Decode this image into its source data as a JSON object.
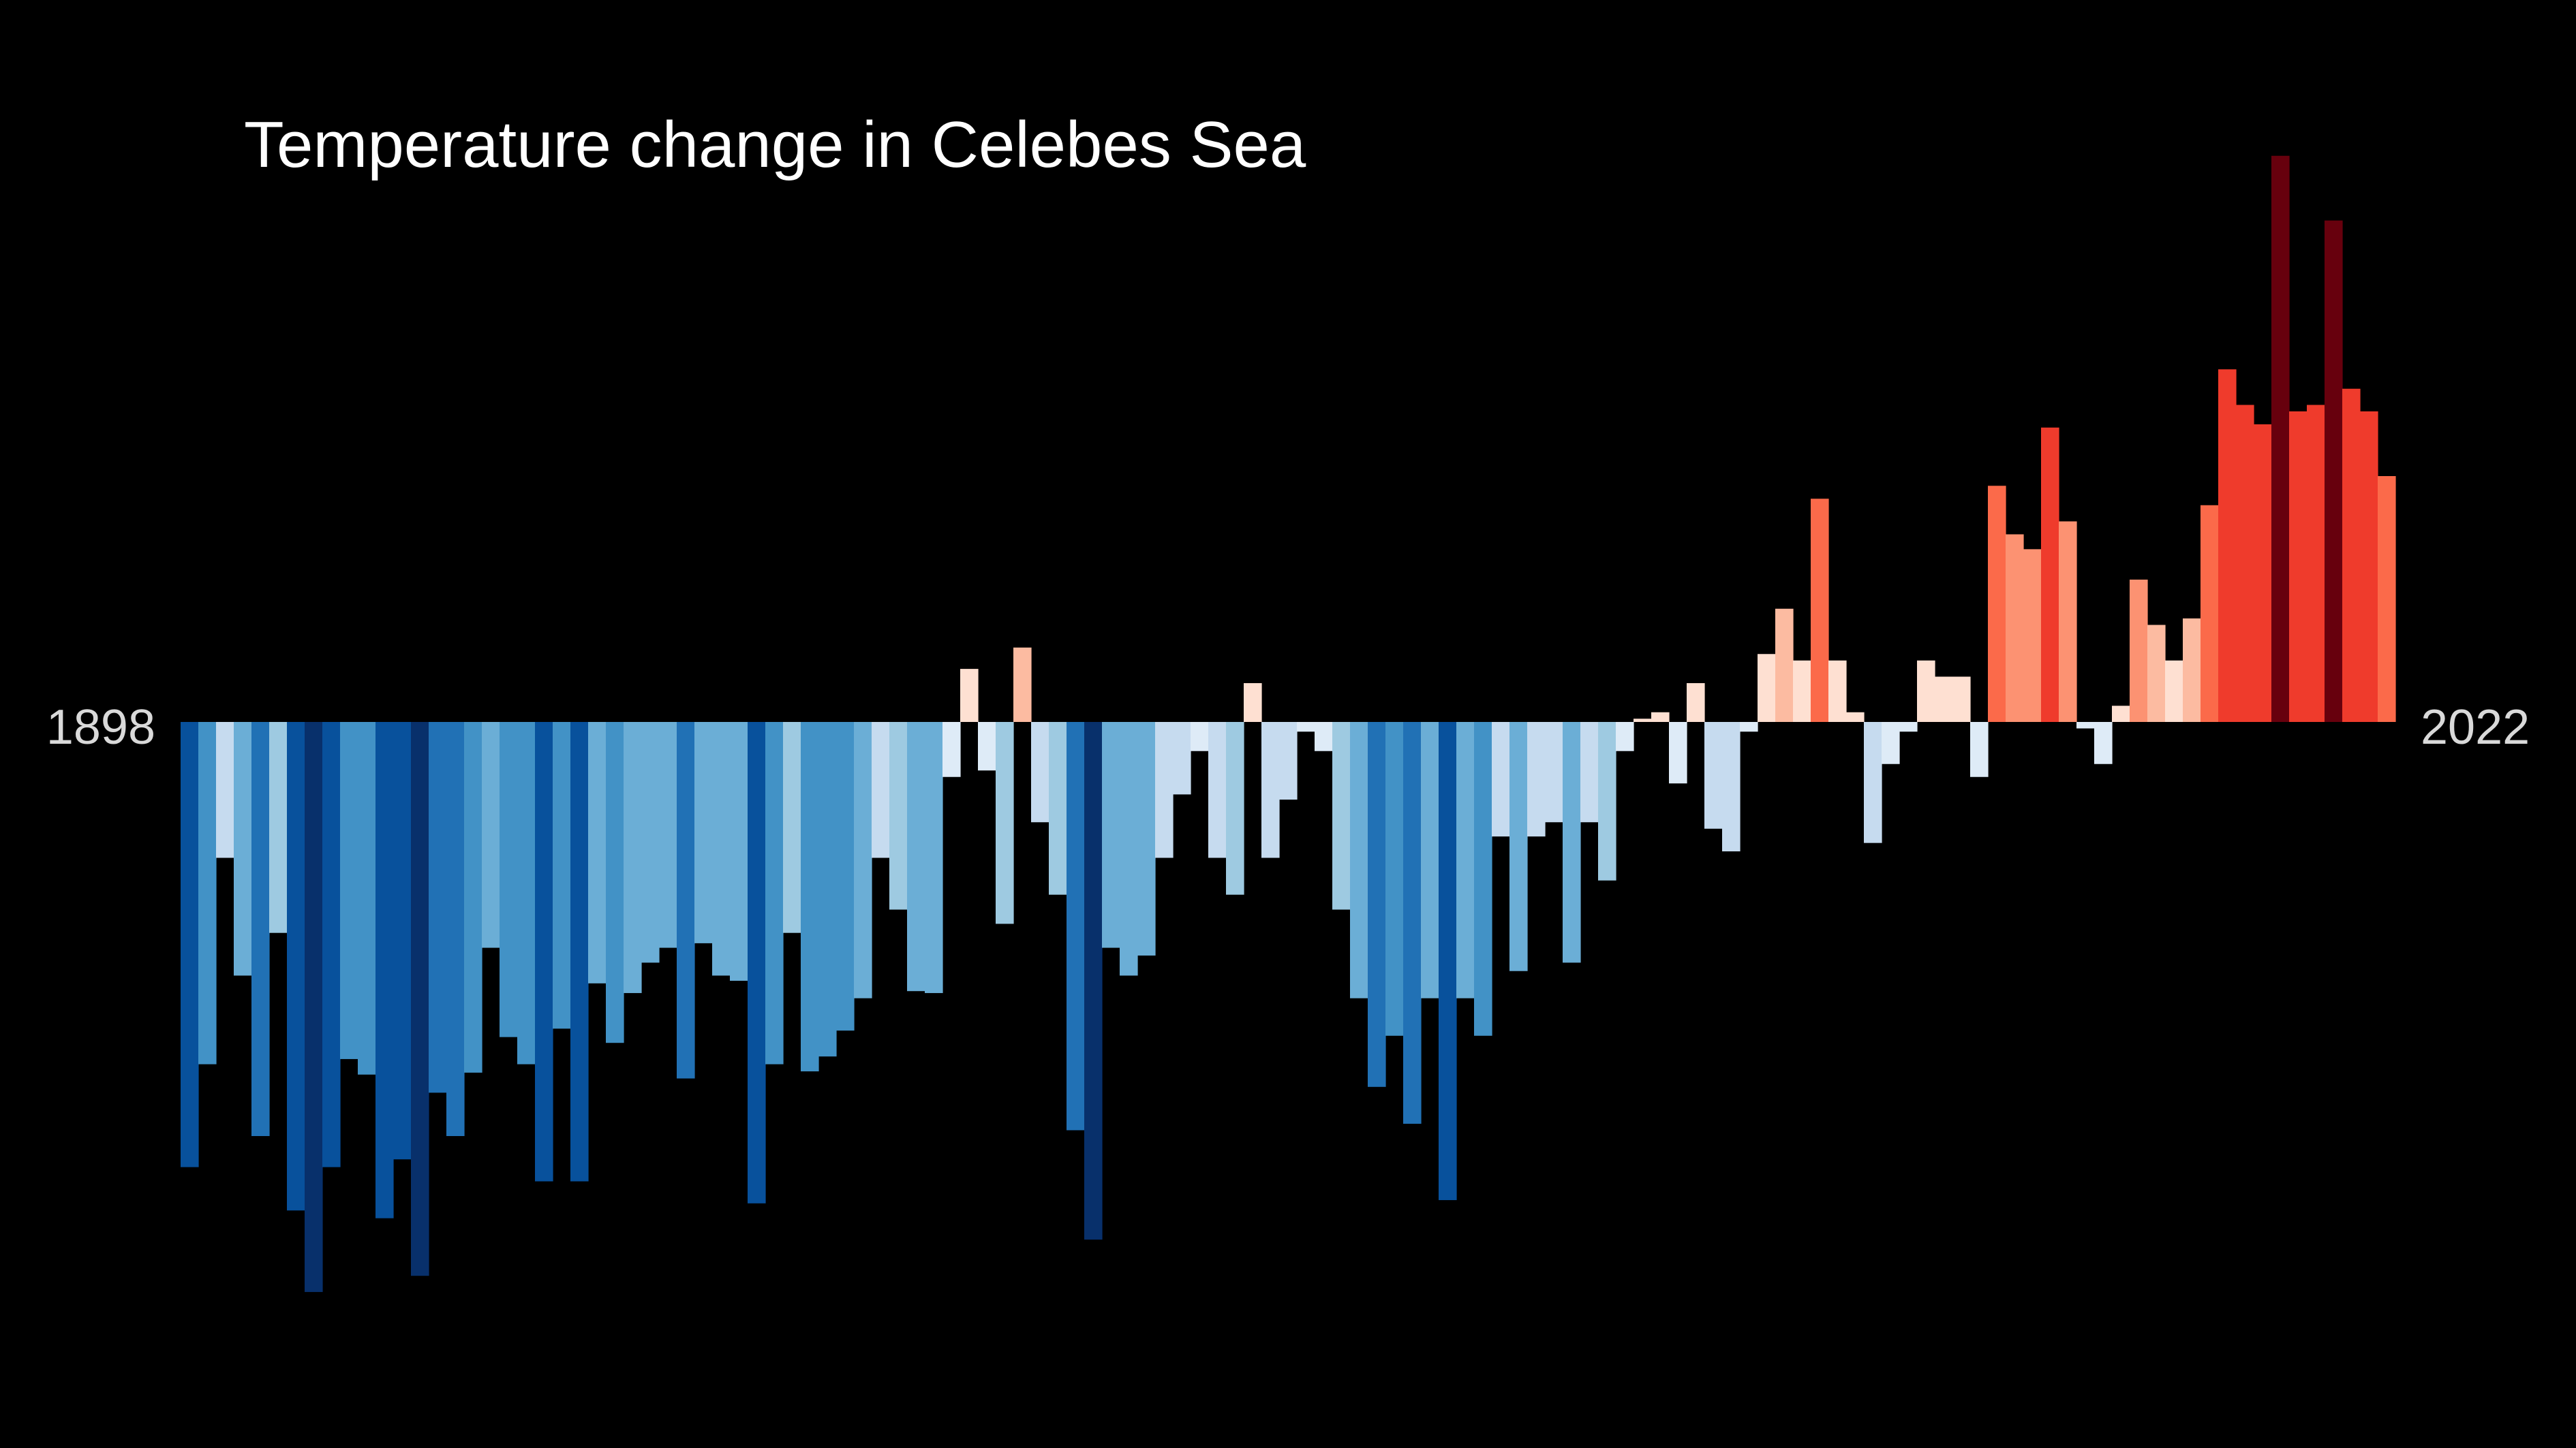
{
  "chart_data": {
    "type": "bar",
    "title": "Temperature change in Celebes Sea",
    "x_start_label": "1898",
    "x_end_label": "2022",
    "xlabel": "",
    "ylabel": "",
    "grid": false,
    "legend": "none",
    "colors": {
      "background": "#000000",
      "scale": [
        "#08306b",
        "#08519c",
        "#2171b5",
        "#4292c6",
        "#6baed6",
        "#9ecae1",
        "#c6dbef",
        "#deebf7",
        "#fee0d2",
        "#fcbba1",
        "#fc9272",
        "#fb6a4a",
        "#ef3b2c",
        "#cb181d",
        "#a50f15",
        "#67000d"
      ]
    },
    "ylim": [
      -0.88,
      0.88
    ],
    "categories": [
      1898,
      1899,
      1900,
      1901,
      1902,
      1903,
      1904,
      1905,
      1906,
      1907,
      1908,
      1909,
      1910,
      1911,
      1912,
      1913,
      1914,
      1915,
      1916,
      1917,
      1918,
      1919,
      1920,
      1921,
      1922,
      1923,
      1924,
      1925,
      1926,
      1927,
      1928,
      1929,
      1930,
      1931,
      1932,
      1933,
      1934,
      1935,
      1936,
      1937,
      1938,
      1939,
      1940,
      1941,
      1942,
      1943,
      1944,
      1945,
      1946,
      1947,
      1948,
      1949,
      1950,
      1951,
      1952,
      1953,
      1954,
      1955,
      1956,
      1957,
      1958,
      1959,
      1960,
      1961,
      1962,
      1963,
      1964,
      1965,
      1966,
      1967,
      1968,
      1969,
      1970,
      1971,
      1972,
      1973,
      1974,
      1975,
      1976,
      1977,
      1978,
      1979,
      1980,
      1981,
      1982,
      1983,
      1984,
      1985,
      1986,
      1987,
      1988,
      1989,
      1990,
      1991,
      1992,
      1993,
      1994,
      1995,
      1996,
      1997,
      1998,
      1999,
      2000,
      2001,
      2002,
      2003,
      2004,
      2005,
      2006,
      2007,
      2008,
      2009,
      2010,
      2011,
      2012,
      2013,
      2014,
      2015,
      2016,
      2017,
      2018,
      2019,
      2020,
      2021,
      2022
    ],
    "values": [
      -0.688,
      -0.529,
      -0.21,
      -0.392,
      -0.64,
      -0.326,
      -0.755,
      -0.881,
      -0.688,
      -0.521,
      -0.545,
      -0.767,
      -0.676,
      -0.856,
      -0.573,
      -0.64,
      -0.542,
      -0.349,
      -0.487,
      -0.529,
      -0.71,
      -0.474,
      -0.71,
      -0.404,
      -0.496,
      -0.419,
      -0.372,
      -0.349,
      -0.551,
      -0.342,
      -0.392,
      -0.4,
      -0.744,
      -0.529,
      -0.326,
      -0.54,
      -0.517,
      -0.477,
      -0.427,
      -0.21,
      -0.29,
      -0.416,
      -0.419,
      -0.085,
      0.082,
      -0.075,
      -0.312,
      0.115,
      -0.155,
      -0.267,
      -0.631,
      -0.8,
      -0.349,
      -0.392,
      -0.361,
      -0.21,
      -0.112,
      -0.045,
      -0.21,
      -0.267,
      0.06,
      -0.21,
      -0.12,
      -0.015,
      -0.045,
      -0.29,
      -0.427,
      -0.564,
      -0.485,
      -0.621,
      -0.427,
      -0.739,
      -0.427,
      -0.485,
      -0.177,
      -0.385,
      -0.177,
      -0.155,
      -0.372,
      -0.155,
      -0.245,
      -0.045,
      0.005,
      0.015,
      -0.095,
      0.06,
      -0.165,
      -0.2,
      -0.015,
      0.105,
      0.175,
      0.095,
      0.345,
      0.095,
      0.015,
      -0.187,
      -0.065,
      -0.015,
      0.095,
      0.07,
      0.07,
      -0.085,
      0.365,
      0.29,
      0.267,
      0.455,
      0.31,
      -0.01,
      -0.065,
      0.025,
      0.22,
      0.15,
      0.095,
      0.16,
      0.335,
      0.545,
      0.49,
      0.46,
      0.875,
      0.48,
      0.49,
      0.775,
      0.515,
      0.48,
      0.38
    ]
  }
}
